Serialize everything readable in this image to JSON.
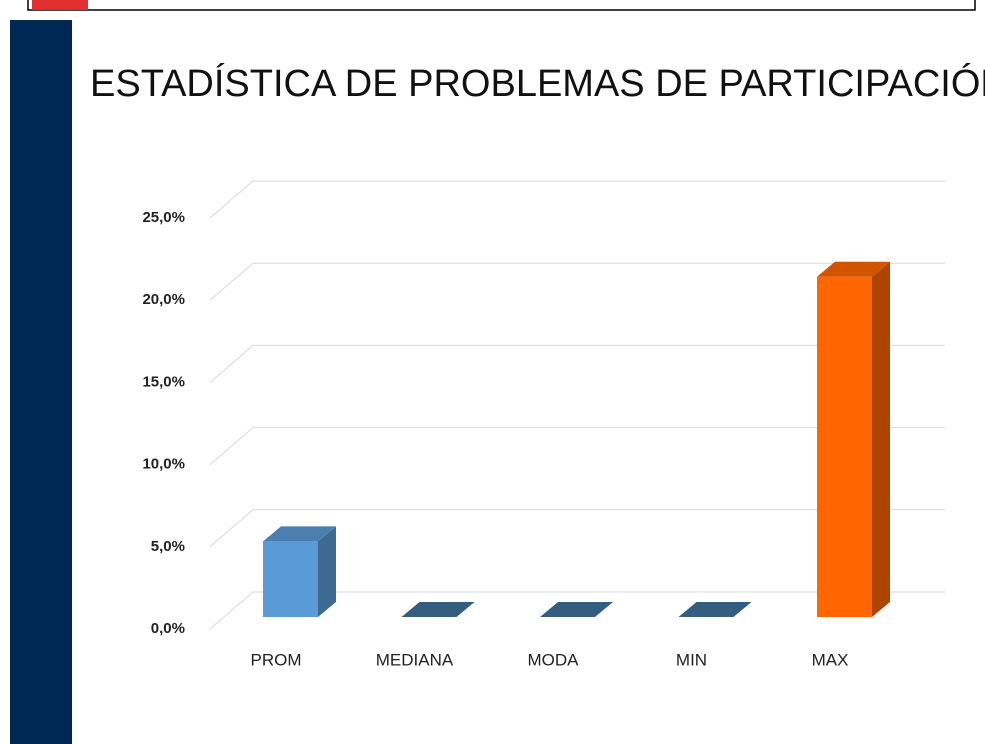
{
  "chart_data": {
    "type": "bar3d",
    "title": "ESTADÍSTICA DE PROBLEMAS DE PARTICIPACIÓN",
    "categories": [
      "PROM",
      "MEDIANA",
      "MODA",
      "MIN",
      "MAX"
    ],
    "values": [
      4.6,
      0,
      0,
      0,
      20.7
    ],
    "colors": [
      "#5b9bd5",
      "#41719c",
      "#41719c",
      "#41719c",
      "#ff6600"
    ],
    "ylim": [
      0,
      25
    ],
    "yticks": [
      {
        "value": 0,
        "label": "0,0%"
      },
      {
        "value": 5,
        "label": "5,0%"
      },
      {
        "value": 10,
        "label": "10,0%"
      },
      {
        "value": 15,
        "label": "15,0%"
      },
      {
        "value": 20,
        "label": "20,0%"
      },
      {
        "value": 25,
        "label": "25,0%"
      }
    ],
    "grid": true
  }
}
